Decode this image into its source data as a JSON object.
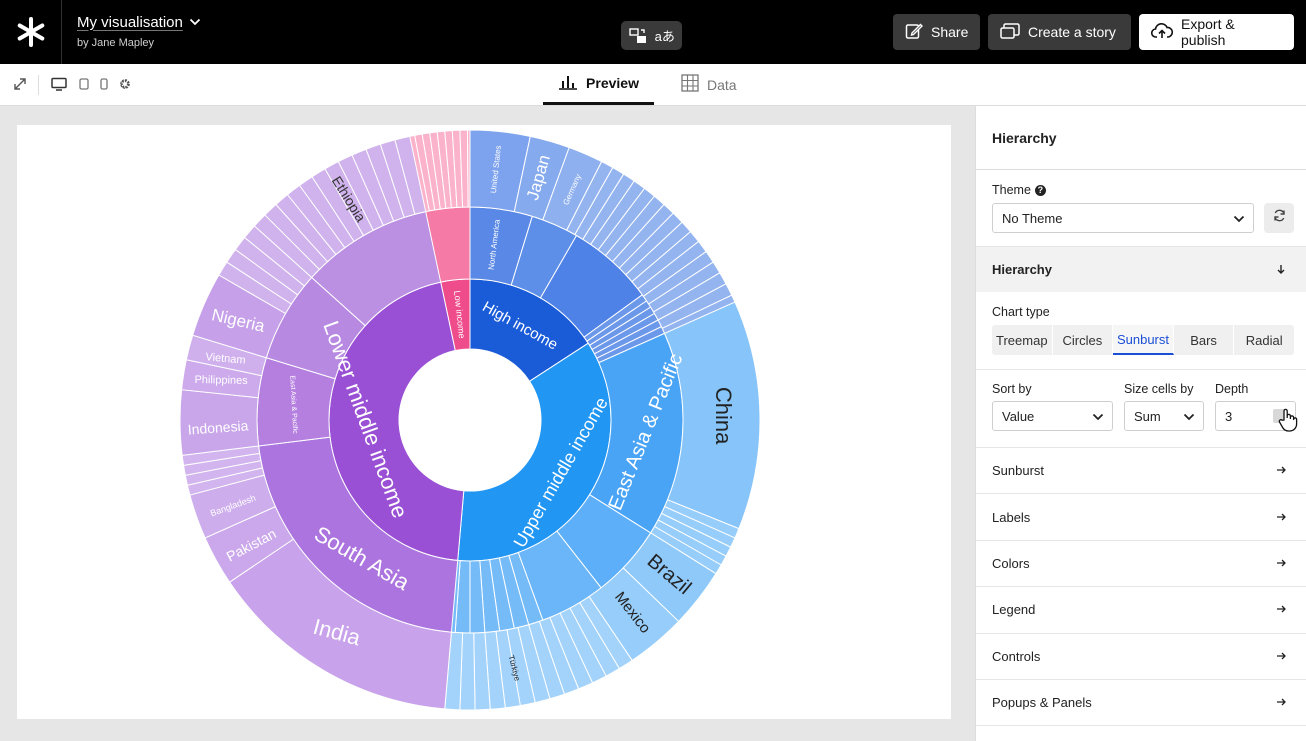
{
  "header": {
    "title": "My visualisation",
    "byline": "by Jane Mapley",
    "share_label": "Share",
    "story_label": "Create a story",
    "export_label": "Export & publish",
    "translate_glyph": "aあ"
  },
  "tabs": {
    "preview": "Preview",
    "data": "Data"
  },
  "chart_data": {
    "type": "sunburst",
    "levels": 3,
    "rings": {
      "income": [
        {
          "label": "Low income",
          "color": "#ee4c8a"
        },
        {
          "label": "High income",
          "color": "#1a5bd8"
        },
        {
          "label": "Upper middle income",
          "color": "#2196f3"
        },
        {
          "label": "Lower middle income",
          "color": "#9a50d4"
        }
      ],
      "region": [
        {
          "label": "North America",
          "parent": "High income"
        },
        {
          "label": "East Asia & Pacific",
          "parent": "Upper middle income"
        },
        {
          "label": "South Asia",
          "parent": "Lower middle income"
        },
        {
          "label": "East Asia & Pacific",
          "parent": "Lower middle income"
        }
      ],
      "country": [
        {
          "label": "United States"
        },
        {
          "label": "Japan"
        },
        {
          "label": "Germany"
        },
        {
          "label": "China"
        },
        {
          "label": "Brazil"
        },
        {
          "label": "Mexico"
        },
        {
          "label": "Türkiye"
        },
        {
          "label": "India"
        },
        {
          "label": "Pakistan"
        },
        {
          "label": "Bangladesh"
        },
        {
          "label": "Indonesia"
        },
        {
          "label": "Philippines"
        },
        {
          "label": "Vietnam"
        },
        {
          "label": "Nigeria"
        },
        {
          "label": "Ethiopia"
        }
      ]
    }
  },
  "panel": {
    "title": "Hierarchy",
    "theme_label": "Theme",
    "theme_value": "No Theme",
    "hierarchy_section": "Hierarchy",
    "chart_type_label": "Chart type",
    "chart_types": [
      "Treemap",
      "Circles",
      "Sunburst",
      "Bars",
      "Radial"
    ],
    "chart_type_selected": "Sunburst",
    "sort_by_label": "Sort by",
    "sort_by_value": "Value",
    "size_cells_label": "Size cells by",
    "size_cells_value": "Sum",
    "depth_label": "Depth",
    "depth_value": "3",
    "sections": [
      "Sunburst",
      "Labels",
      "Colors",
      "Legend",
      "Controls",
      "Popups & Panels"
    ]
  }
}
